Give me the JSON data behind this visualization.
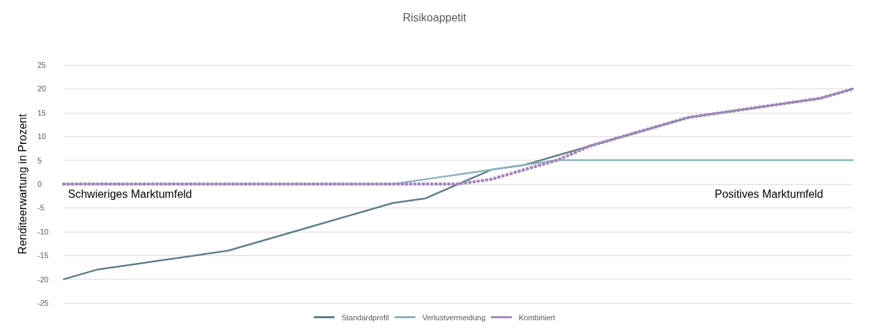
{
  "chart_data": {
    "type": "line",
    "title": "Risikoappetit",
    "ylabel": "Renditeerwartung in Prozent",
    "categories": [
      null,
      null,
      null,
      null,
      null,
      null,
      null,
      null,
      null,
      null,
      null,
      null,
      null,
      null,
      null,
      null,
      null,
      null,
      null,
      null,
      null,
      null,
      null,
      null,
      null
    ],
    "series": [
      {
        "name": "Standardprofil",
        "color": "#5f7e88",
        "line_style": "solid",
        "values": [
          -20,
          -18,
          -17,
          -16,
          -15,
          -14,
          -12,
          -10,
          -8,
          -6,
          -4,
          -3,
          0,
          3,
          4,
          6,
          8,
          10,
          12,
          14,
          15,
          16,
          17,
          18,
          20
        ]
      },
      {
        "name": "Verlustvermeidung",
        "color": "#8db3bd",
        "line_style": "solid",
        "values": [
          0,
          0,
          0,
          0,
          0,
          0,
          0,
          0,
          0,
          0,
          0,
          1,
          2,
          3,
          4,
          5,
          5,
          5,
          5,
          5,
          5,
          5,
          5,
          5,
          5
        ]
      },
      {
        "name": "Kombiniert",
        "color": "#a688bb",
        "line_style": "dotted",
        "values": [
          0,
          0,
          0,
          0,
          0,
          0,
          0,
          0,
          0,
          0,
          0,
          0,
          0,
          1,
          3,
          5,
          8,
          10,
          12,
          14,
          15,
          16,
          17,
          18,
          20
        ]
      }
    ],
    "annotations": [
      "Schwieriges Marktumfeld",
      "Positives Marktumfeld"
    ],
    "ylim": [
      -25,
      25
    ],
    "yticks": [
      -25,
      -20,
      -15,
      -10,
      -5,
      0,
      5,
      10,
      15,
      20,
      25
    ],
    "grid": "y",
    "legend": "bottom",
    "marker": "none"
  }
}
